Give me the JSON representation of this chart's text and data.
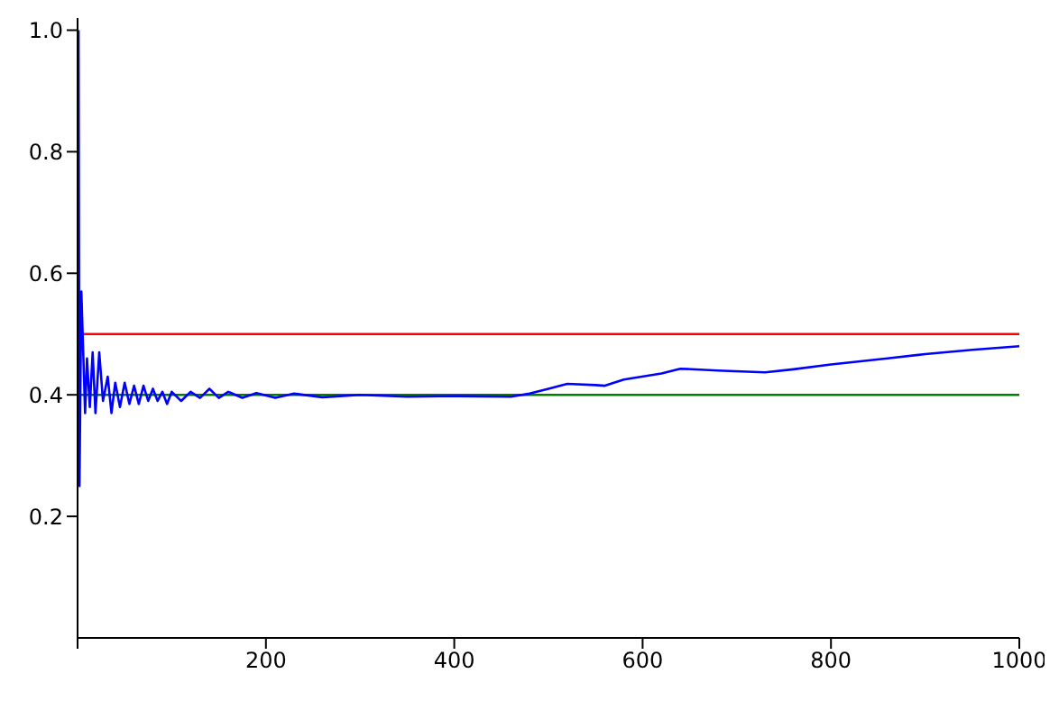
{
  "chart_data": {
    "type": "line",
    "xlim": [
      0,
      1000
    ],
    "ylim": [
      0,
      1.02
    ],
    "xticks": [
      {
        "value": 0,
        "label": null
      },
      200,
      400,
      600,
      800,
      1000
    ],
    "yticks": [
      0.2,
      0.4,
      0.6,
      0.8,
      {
        "value": 1,
        "label": "1.0"
      }
    ],
    "grid": false,
    "legend": false,
    "marker": "none",
    "line_style": "solid",
    "series": [
      {
        "color": "#0000ff",
        "x": [
          1,
          2,
          4,
          8,
          10,
          13,
          16,
          19,
          23,
          27,
          32,
          36,
          40,
          45,
          50,
          55,
          60,
          65,
          70,
          75,
          80,
          85,
          90,
          95,
          100,
          110,
          120,
          130,
          140,
          150,
          160,
          175,
          190,
          210,
          230,
          260,
          300,
          350,
          400,
          460,
          480,
          500,
          520,
          550,
          560,
          580,
          620,
          640,
          680,
          730,
          760,
          800,
          860,
          900,
          950,
          1000
        ],
        "values": [
          1.0,
          0.25,
          0.57,
          0.37,
          0.46,
          0.38,
          0.47,
          0.37,
          0.47,
          0.39,
          0.43,
          0.37,
          0.42,
          0.38,
          0.42,
          0.385,
          0.415,
          0.385,
          0.415,
          0.39,
          0.41,
          0.39,
          0.405,
          0.385,
          0.405,
          0.39,
          0.405,
          0.395,
          0.41,
          0.395,
          0.405,
          0.395,
          0.403,
          0.395,
          0.402,
          0.396,
          0.4,
          0.397,
          0.398,
          0.397,
          0.402,
          0.41,
          0.418,
          0.416,
          0.415,
          0.425,
          0.435,
          0.443,
          0.44,
          0.437,
          0.442,
          0.45,
          0.46,
          0.467,
          0.474,
          0.48
        ]
      }
    ],
    "ref_lines": [
      {
        "axis": "y",
        "value": 0.5,
        "color": "#ff0000"
      },
      {
        "axis": "y",
        "value": 0.4,
        "color": "#008000"
      }
    ]
  }
}
